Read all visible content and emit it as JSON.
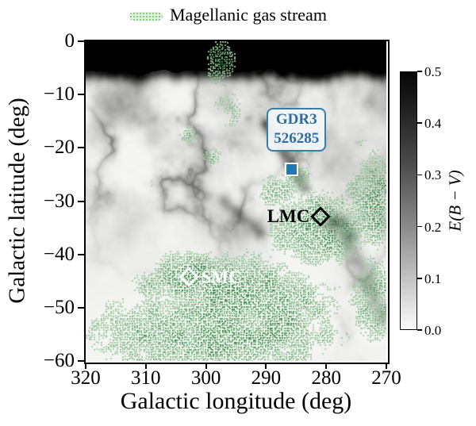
{
  "chart_data": {
    "type": "heatmap",
    "title": "",
    "description": "Dust extinction map E(B-V) in Galactic coordinates with the Magellanic gas stream overlaid as green dotted hatching; markers show GDR3 526285, the LMC and the SMC.",
    "xlabel": "Galactic longitude (deg)",
    "ylabel": "Galactic latitude (deg)",
    "xlim": [
      320,
      270
    ],
    "ylim": [
      0,
      -60
    ],
    "grid": false,
    "xticks": {
      "values": [
        320,
        310,
        300,
        290,
        280,
        270
      ],
      "labels": [
        "320",
        "310",
        "300",
        "290",
        "280",
        "270"
      ]
    },
    "yticks": {
      "values": [
        0,
        -10,
        -20,
        -30,
        -40,
        -50,
        -60
      ],
      "labels": [
        "0",
        "−10",
        "−20",
        "−30",
        "−40",
        "−50",
        "−60"
      ]
    },
    "colorbar": {
      "label": "E(B − V)",
      "min": 0.0,
      "max": 0.5,
      "cmap": "Greys (0.0 white to 0.5 black)",
      "ticks": {
        "values": [
          0.5,
          0.4,
          0.3,
          0.2,
          0.1,
          0.0
        ],
        "labels": [
          "0.5",
          "0.4",
          "0.3",
          "0.2",
          "0.1",
          "0.0"
        ]
      }
    },
    "legend": [
      {
        "label": "Magellanic gas stream",
        "style": "dotted-hatch",
        "color": "#69bd69",
        "position": "top-center"
      }
    ],
    "markers": [
      {
        "id": "gdr3-526285",
        "label": "GDR3\n526285",
        "x": 285.8,
        "y": -24.0,
        "marker": "filled-square",
        "color": "#2277b4",
        "label_style": "boxed-above",
        "label_color": "#2e6da0"
      },
      {
        "id": "lmc",
        "label": "LMC",
        "x": 280.9,
        "y": -32.9,
        "marker": "open-diamond",
        "color": "#000000",
        "label_style": "left",
        "label_color": "#000000"
      },
      {
        "id": "smc",
        "label": "SMC",
        "x": 302.8,
        "y": -44.3,
        "marker": "open-diamond",
        "color": "#ffffff",
        "label_style": "right",
        "label_color": "#ffffff"
      }
    ],
    "stream_blobs": [
      [
        299,
        -55,
        16,
        6,
        0.9
      ],
      [
        295,
        -47,
        9,
        5,
        0.95
      ],
      [
        302.5,
        -44.5,
        4.5,
        3.5,
        1.1
      ],
      [
        287,
        -50,
        7,
        5,
        0.85
      ],
      [
        309,
        -46,
        3,
        2.5,
        0.6
      ],
      [
        316,
        -55,
        4,
        4,
        0.5
      ],
      [
        281,
        -35,
        6,
        5,
        1.0
      ],
      [
        288,
        -28,
        3,
        3,
        0.65
      ],
      [
        285.5,
        -25.5,
        2.5,
        2,
        0.65
      ],
      [
        272,
        -30,
        4,
        7,
        0.85
      ],
      [
        272,
        -48,
        3.5,
        7,
        0.7
      ],
      [
        299,
        -22,
        2,
        2,
        0.5
      ],
      [
        296.5,
        -13,
        2.5,
        3,
        0.55
      ],
      [
        297.5,
        -4,
        2,
        3.5,
        0.8
      ],
      [
        303,
        -17.5,
        1.7,
        1.7,
        0.5
      ],
      [
        312,
        -22,
        2.5,
        2.5,
        0.35
      ],
      [
        309,
        -28,
        3,
        3,
        0.35
      ],
      [
        274,
        -20,
        1.5,
        2,
        0.45
      ]
    ],
    "dust_ridge_regions": [
      [
        312,
        -26,
        6,
        8,
        0.95
      ],
      [
        298,
        -29,
        5,
        6,
        0.85
      ],
      [
        295,
        -11,
        8,
        5,
        1.0
      ],
      [
        285,
        -19,
        3,
        4,
        0.75
      ],
      [
        305,
        -21,
        4,
        4,
        0.65
      ],
      [
        274,
        -45,
        3,
        9,
        0.5
      ],
      [
        310,
        -16,
        5,
        3,
        0.8
      ]
    ],
    "dust_filaments": [
      [
        290,
        -15.5,
        283.5,
        -27.5,
        0.75,
        0.5
      ],
      [
        276,
        -38,
        270.5,
        -52,
        1.1,
        0.28
      ],
      [
        297,
        -30,
        291,
        -36,
        0.9,
        0.3
      ]
    ],
    "dust_blobs": [
      [
        278.3,
        -34,
        1.4,
        1.1,
        0.65
      ],
      [
        276.5,
        -36.5,
        1.2,
        0.9,
        0.35
      ]
    ],
    "stream_colors": {
      "light": "#cbe6c7",
      "dark": "#1e7d30"
    }
  }
}
